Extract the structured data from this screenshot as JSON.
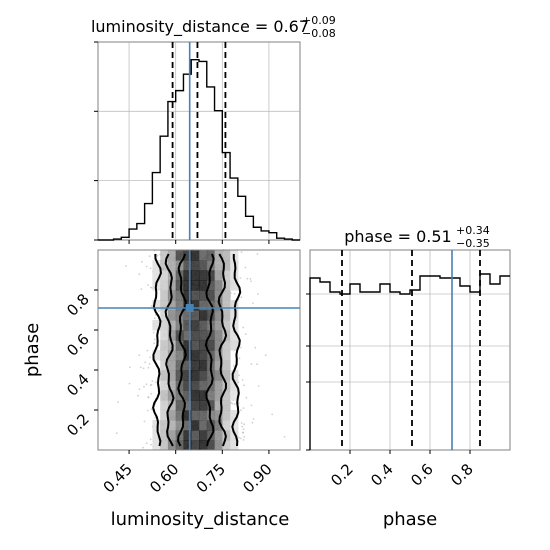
{
  "chart_data": [
    {
      "type": "histogram",
      "panel": "luminosity_distance-marginal",
      "title_param": "luminosity_distance",
      "title_median": "0.67",
      "title_plus": "+0.09",
      "title_minus": "−0.08",
      "xlim": [
        0.35,
        1.0
      ],
      "ylim": [
        0,
        1
      ],
      "bin_edges": [
        0.35,
        0.375,
        0.4,
        0.425,
        0.45,
        0.475,
        0.5,
        0.525,
        0.55,
        0.575,
        0.6,
        0.625,
        0.65,
        0.675,
        0.7,
        0.725,
        0.75,
        0.775,
        0.8,
        0.825,
        0.85,
        0.875,
        0.9,
        0.925,
        0.95,
        0.975,
        1.0
      ],
      "counts": [
        0.0,
        0.0,
        0.005,
        0.015,
        0.06,
        0.09,
        0.2,
        0.37,
        0.57,
        0.76,
        0.82,
        0.91,
        0.99,
        0.98,
        0.84,
        0.71,
        0.48,
        0.34,
        0.24,
        0.13,
        0.07,
        0.05,
        0.04,
        0.01,
        0.005,
        0.0
      ],
      "quantiles": [
        0.59,
        0.67,
        0.76
      ],
      "truth": 0.645
    },
    {
      "type": "histogram",
      "panel": "phase-marginal",
      "title_param": "phase",
      "title_median": "0.51",
      "title_plus": "+0.34",
      "title_minus": "−0.35",
      "xlim": [
        0.0,
        1.0
      ],
      "ylim": [
        0,
        1
      ],
      "xticks": [
        "0.2",
        "0.4",
        "0.6",
        "0.8"
      ],
      "bin_edges": [
        0.0,
        0.05,
        0.1,
        0.15,
        0.2,
        0.25,
        0.3,
        0.35,
        0.4,
        0.45,
        0.5,
        0.55,
        0.6,
        0.65,
        0.7,
        0.75,
        0.8,
        0.85,
        0.9,
        0.95,
        1.0
      ],
      "counts": [
        0.86,
        0.84,
        0.79,
        0.78,
        0.83,
        0.79,
        0.79,
        0.83,
        0.79,
        0.78,
        0.8,
        0.87,
        0.87,
        0.86,
        0.86,
        0.82,
        0.79,
        0.88,
        0.83,
        0.87
      ],
      "quantiles": [
        0.16,
        0.51,
        0.85
      ],
      "truth": 0.71
    },
    {
      "type": "heatmap",
      "panel": "luminosity_distance-phase-2d",
      "xlabel": "luminosity_distance",
      "ylabel": "phase",
      "xlim": [
        0.35,
        1.0
      ],
      "ylim": [
        0.0,
        1.0
      ],
      "xticks": [
        "0.45",
        "0.60",
        "0.75",
        "0.90"
      ],
      "yticks": [
        "0.2",
        "0.4",
        "0.6",
        "0.8"
      ],
      "truth": [
        0.645,
        0.71
      ],
      "density_note": "vertical band centered near luminosity_distance 0.66, roughly uniform in phase"
    }
  ]
}
